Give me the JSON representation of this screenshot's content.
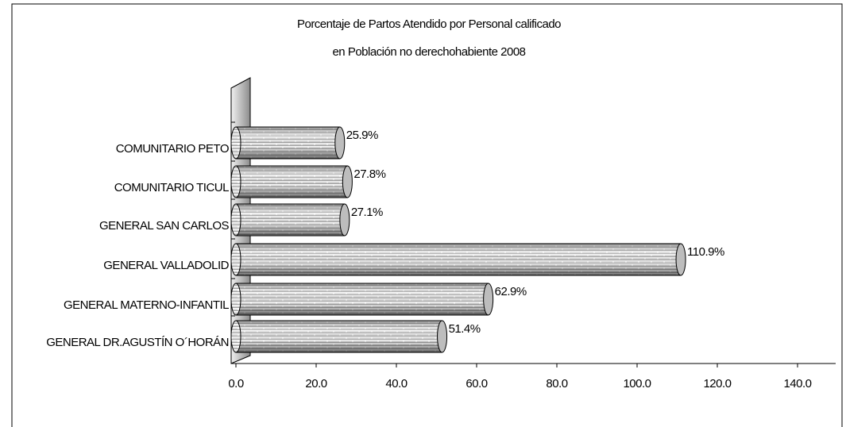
{
  "chart_data": {
    "type": "bar",
    "orientation": "horizontal",
    "title_lines": [
      "Porcentaje de Partos Atendido por Personal calificado",
      "en Población no derechohabiente 2008"
    ],
    "categories": [
      "COMUNITARIO PETO",
      "COMUNITARIO TICUL",
      "GENERAL SAN CARLOS",
      "GENERAL VALLADOLID",
      "GENERAL MATERNO-INFANTIL",
      "GENERAL DR.AGUSTÍN O´HORÁN"
    ],
    "values": [
      25.9,
      27.8,
      27.1,
      110.9,
      62.9,
      51.4
    ],
    "value_labels": [
      "25.9%",
      "27.8%",
      "27.1%",
      "110.9%",
      "62.9%",
      "51.4%"
    ],
    "color": "#bdbdbd",
    "xlim": [
      0,
      140
    ],
    "xticks": [
      {
        "value": 0,
        "label": "0.0"
      },
      {
        "value": 20,
        "label": "20.0"
      },
      {
        "value": 40,
        "label": "40.0"
      },
      {
        "value": 60,
        "label": "60.0"
      },
      {
        "value": 80,
        "label": "80.0"
      },
      {
        "value": 100,
        "label": "100.0"
      },
      {
        "value": 120,
        "label": "120.0"
      },
      {
        "value": 140,
        "label": "140.0"
      }
    ],
    "grid": false
  }
}
